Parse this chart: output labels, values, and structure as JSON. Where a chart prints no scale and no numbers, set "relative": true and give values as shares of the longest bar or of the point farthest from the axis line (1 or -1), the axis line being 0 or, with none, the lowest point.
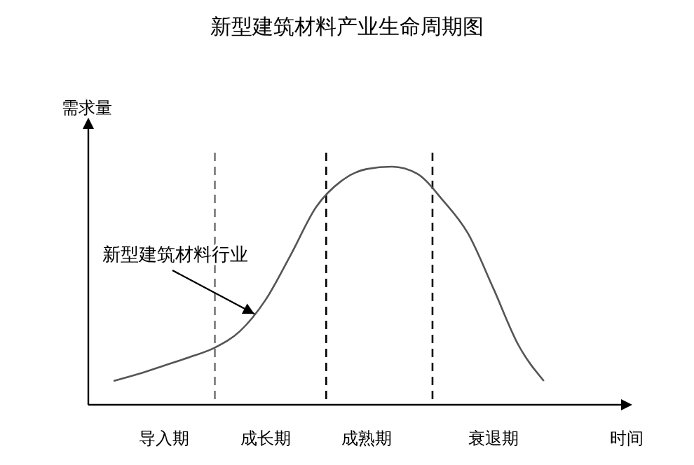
{
  "chart_data": {
    "type": "line",
    "title": "新型建筑材料产业生命周期图",
    "xlabel": "时间",
    "ylabel": "需求量",
    "relative": true,
    "categories": [
      null,
      null,
      null,
      "导入期",
      null,
      null,
      null,
      "成长期",
      null,
      null,
      null,
      "成熟期",
      null,
      null,
      null,
      null,
      "衰退期",
      null,
      null,
      null,
      null
    ],
    "series": [
      {
        "color": "#555555",
        "values": [
          null,
          0.1,
          0.13,
          0.165,
          0.2,
          0.24,
          0.31,
          0.44,
          0.63,
          0.83,
          0.94,
          0.99,
          1,
          0.97,
          0.86,
          0.72,
          0.49,
          0.25,
          0.1,
          null,
          null
        ]
      }
    ],
    "annotations": [
      "新型建筑材料行业"
    ]
  }
}
